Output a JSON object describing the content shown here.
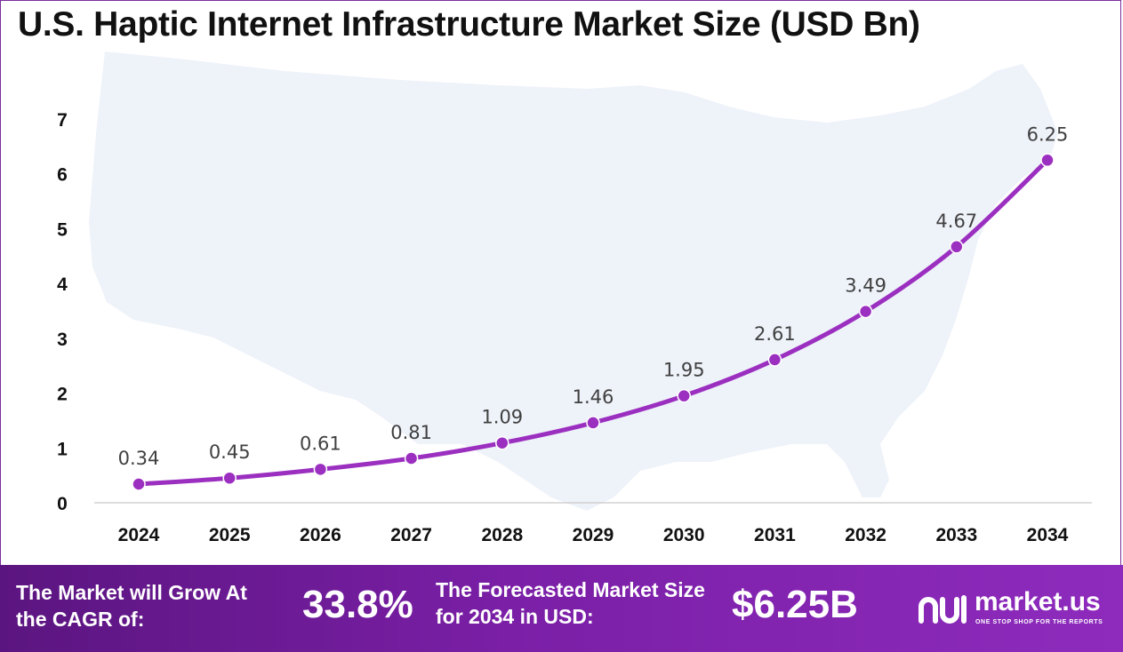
{
  "title": "U.S. Haptic Internet Infrastructure Market Size (USD Bn)",
  "chart_data": {
    "type": "line",
    "title": "U.S. Haptic Internet Infrastructure Market Size (USD Bn)",
    "categories": [
      "2024",
      "2025",
      "2026",
      "2027",
      "2028",
      "2029",
      "2030",
      "2031",
      "2032",
      "2033",
      "2034"
    ],
    "values": [
      0.34,
      0.45,
      0.61,
      0.81,
      1.09,
      1.46,
      1.95,
      2.61,
      3.49,
      4.67,
      6.25
    ],
    "data_labels": [
      "0.34",
      "0.45",
      "0.61",
      "0.81",
      "1.09",
      "1.46",
      "1.95",
      "2.61",
      "3.49",
      "4.67",
      "6.25"
    ],
    "ylim": [
      0,
      7
    ],
    "yticks": [
      "0",
      "1",
      "2",
      "3",
      "4",
      "5",
      "6",
      "7"
    ],
    "grid": false,
    "legend": "none",
    "line_color": "#9b2fc0"
  },
  "footer": {
    "cagr_label": "The Market will Grow At the CAGR of:",
    "cagr_value": "33.8%",
    "forecast_label": "The Forecasted Market Size for 2034 in USD:",
    "forecast_value": "$6.25B",
    "brand_name": "market.us",
    "brand_tagline": "ONE STOP SHOP FOR THE REPORTS"
  },
  "colors": {
    "footer_bg": "#7a1fa6",
    "line": "#9b2fc0",
    "map": "#eef2f9"
  }
}
